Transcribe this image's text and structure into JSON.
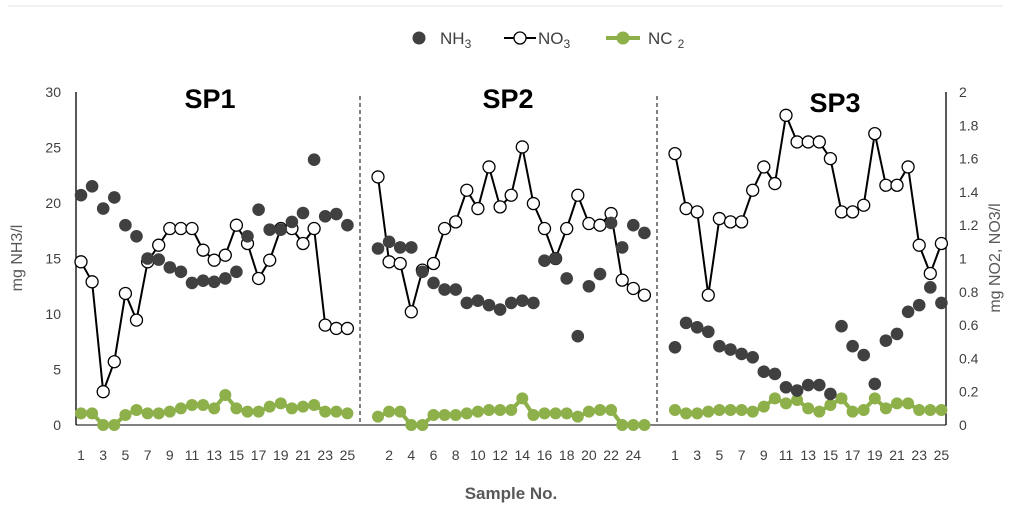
{
  "chart_data": {
    "type": "scatter",
    "legend": {
      "placement": "top-center",
      "entries": [
        {
          "key": "nh3",
          "label": "NH",
          "sub": "3"
        },
        {
          "key": "no3",
          "label": "NO",
          "sub": "3"
        },
        {
          "key": "nc2",
          "label": "NC",
          "sub": "2"
        }
      ]
    },
    "xlabel": "Sample No.",
    "ylabel_left": "mg NH3/l",
    "ylabel_right": "mg NO2, NO3/l",
    "ylim_left": [
      0,
      30
    ],
    "ylim_right": [
      0,
      2
    ],
    "yticks_left": [
      "0",
      "5",
      "10",
      "15",
      "20",
      "25",
      "30"
    ],
    "yticks_right": [
      "0",
      "0.2",
      "0.4",
      "0.6",
      "0.8",
      "1",
      "1.2",
      "1.4",
      "1.6",
      "1.8",
      "2"
    ],
    "grid": false,
    "colors": {
      "nh3": "#404040",
      "no3_line": "#000000",
      "no3_fill": "#ffffff",
      "nc2": "#8db04a",
      "axis": "#000000",
      "divider": "#000000"
    },
    "panels": [
      {
        "title": "SP1",
        "x_ticks": [
          "1",
          "3",
          "5",
          "7",
          "9",
          "11",
          "13",
          "15",
          "17",
          "19",
          "21",
          "23",
          "25"
        ],
        "tick_mode": "odd",
        "nh3": [
          20.7,
          21.5,
          19.5,
          20.5,
          18,
          17,
          15,
          14.9,
          14.2,
          13.8,
          12.8,
          13,
          12.9,
          13.2,
          13.8,
          17,
          19.4,
          17.6,
          17.6,
          18.3,
          19.1,
          23.9,
          18.8,
          19,
          18
        ],
        "no3": [
          0.98,
          0.86,
          0.2,
          0.38,
          0.79,
          0.63,
          0.98,
          1.08,
          1.18,
          1.18,
          1.18,
          1.05,
          0.99,
          1.02,
          1.2,
          1.09,
          0.88,
          0.99,
          1.18,
          1.18,
          1.09,
          1.18,
          0.6,
          0.58,
          0.58
        ],
        "nc2": [
          0.07,
          0.07,
          0,
          0,
          0.06,
          0.09,
          0.07,
          0.07,
          0.08,
          0.1,
          0.12,
          0.12,
          0.1,
          0.18,
          0.1,
          0.08,
          0.08,
          0.11,
          0.13,
          0.1,
          0.11,
          0.12,
          0.08,
          0.08,
          0.07
        ]
      },
      {
        "title": "SP2",
        "x_ticks": [
          "2",
          "4",
          "6",
          "8",
          "10",
          "12",
          "14",
          "16",
          "18",
          "20",
          "22",
          "24"
        ],
        "tick_mode": "even",
        "nh3": [
          15.9,
          16.5,
          16,
          16,
          13.8,
          12.8,
          12.2,
          12.2,
          11,
          11.2,
          10.8,
          10.4,
          11,
          11.2,
          11,
          14.8,
          15,
          13.2,
          8,
          12.5,
          13.6,
          18.2,
          16,
          18,
          17.3
        ],
        "no3": [
          1.49,
          0.98,
          0.97,
          0.68,
          0.93,
          0.97,
          1.18,
          1.22,
          1.41,
          1.3,
          1.55,
          1.31,
          1.38,
          1.67,
          1.33,
          1.18,
          1.0,
          1.18,
          1.38,
          1.21,
          1.2,
          1.27,
          0.87,
          0.82,
          0.78
        ],
        "nc2": [
          0.05,
          0.08,
          0.08,
          0,
          0,
          0.06,
          0.06,
          0.06,
          0.07,
          0.08,
          0.09,
          0.09,
          0.09,
          0.16,
          0.06,
          0.07,
          0.07,
          0.07,
          0.05,
          0.08,
          0.09,
          0.09,
          0,
          0,
          0
        ]
      },
      {
        "title": "SP3",
        "x_ticks": [
          "1",
          "3",
          "5",
          "7",
          "9",
          "11",
          "13",
          "15",
          "17",
          "19",
          "21",
          "23",
          "25"
        ],
        "tick_mode": "odd",
        "nh3": [
          7,
          9.2,
          8.8,
          8.4,
          7.1,
          6.8,
          6.4,
          6.1,
          4.8,
          4.6,
          3.4,
          3.1,
          3.6,
          3.6,
          2.8,
          8.9,
          7.1,
          6.3,
          3.7,
          7.6,
          8.2,
          10.2,
          10.8,
          12.4,
          11
        ],
        "no3": [
          1.63,
          1.3,
          1.28,
          0.78,
          1.24,
          1.22,
          1.22,
          1.41,
          1.55,
          1.45,
          1.86,
          1.7,
          1.7,
          1.7,
          1.6,
          1.28,
          1.28,
          1.32,
          1.75,
          1.44,
          1.44,
          1.55,
          1.08,
          0.91,
          1.09
        ],
        "nc2": [
          0.09,
          0.07,
          0.07,
          0.08,
          0.09,
          0.09,
          0.09,
          0.08,
          0.11,
          0.16,
          0.13,
          0.15,
          0.1,
          0.08,
          0.12,
          0.16,
          0.08,
          0.09,
          0.16,
          0.1,
          0.13,
          0.13,
          0.09,
          0.09,
          0.09
        ]
      }
    ]
  }
}
